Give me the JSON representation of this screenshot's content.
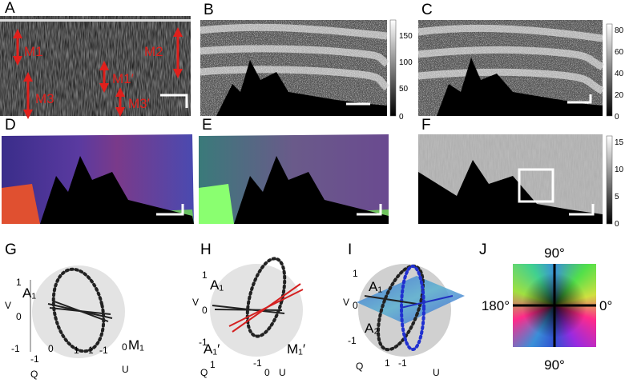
{
  "panels": [
    {
      "label": "A",
      "annotations": [
        "M1",
        "M2",
        "M1′",
        "M3",
        "M3′"
      ]
    },
    {
      "label": "B",
      "colorbar_ticks": [
        "0",
        "50",
        "100",
        "150"
      ]
    },
    {
      "label": "C",
      "colorbar_ticks": [
        "0",
        "20",
        "40",
        "60",
        "80"
      ]
    },
    {
      "label": "D"
    },
    {
      "label": "E"
    },
    {
      "label": "F",
      "colorbar_ticks": [
        "0",
        "5",
        "10",
        "15"
      ]
    },
    {
      "label": "G",
      "texts": [
        "1",
        "0",
        "-1",
        "V",
        "A₁",
        "M₁",
        "-1",
        "Q",
        "0",
        "1",
        "1",
        "-1",
        "0",
        "U"
      ]
    },
    {
      "label": "H",
      "texts": [
        "1",
        "0",
        "-1",
        "V",
        "A₁",
        "A₁′",
        "M₁′",
        "Q",
        "1",
        "-1",
        "0",
        "U"
      ]
    },
    {
      "label": "I",
      "texts": [
        "1",
        "0",
        "-1",
        "V",
        "A₁",
        "A₂",
        "Q",
        "1",
        "-1",
        "U"
      ]
    },
    {
      "label": "J",
      "angles": [
        "90°",
        "180°",
        "0°",
        "90°"
      ]
    }
  ]
}
